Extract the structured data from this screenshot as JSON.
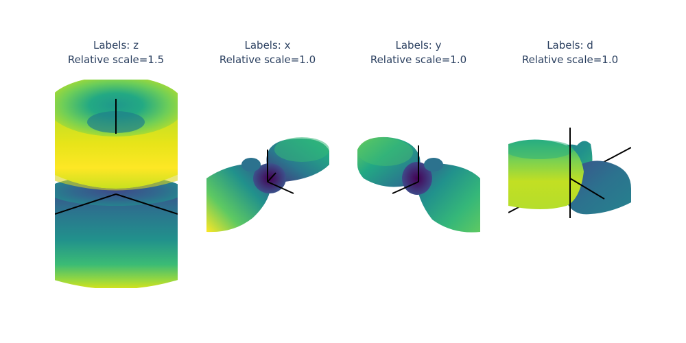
{
  "chart_data": [
    {
      "type": "3d-surface",
      "title_line1": "Labels: z",
      "title_line2": "Relative scale=1.5",
      "label": "z",
      "relative_scale": 1.5,
      "colorscale": "viridis",
      "axes_visible": false,
      "grid": false
    },
    {
      "type": "3d-surface",
      "title_line1": "Labels: x",
      "title_line2": "Relative scale=1.0",
      "label": "x",
      "relative_scale": 1.0,
      "colorscale": "viridis",
      "axes_visible": false,
      "grid": false
    },
    {
      "type": "3d-surface",
      "title_line1": "Labels: y",
      "title_line2": "Relative scale=1.0",
      "label": "y",
      "relative_scale": 1.0,
      "colorscale": "viridis",
      "axes_visible": false,
      "grid": false
    },
    {
      "type": "3d-surface",
      "title_line1": "Labels: d",
      "title_line2": "Relative scale=1.0",
      "label": "d",
      "relative_scale": 1.0,
      "colorscale": "viridis",
      "axes_visible": false,
      "grid": false
    }
  ],
  "colors": {
    "title_text": "#2a3f5f",
    "axis_lines": "#000000",
    "viridis_low": "#440154",
    "viridis_mid": "#21918c",
    "viridis_high": "#fde725"
  }
}
